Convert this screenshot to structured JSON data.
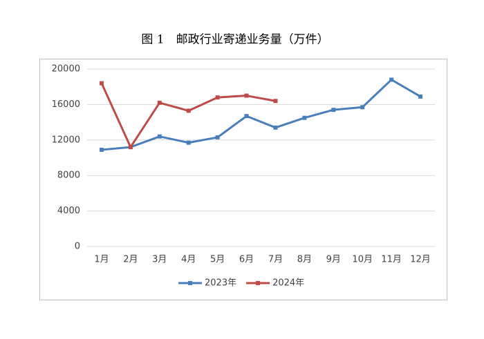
{
  "chart_data": {
    "type": "line",
    "title": "图 1　邮政行业寄递业务量（万件）",
    "categories": [
      "1月",
      "2月",
      "3月",
      "4月",
      "5月",
      "6月",
      "7月",
      "8月",
      "9月",
      "10月",
      "11月",
      "12月"
    ],
    "series": [
      {
        "name": "2023年",
        "color": "#4a7ebb",
        "values": [
          10900,
          11200,
          12400,
          11700,
          12300,
          14700,
          13400,
          14500,
          15400,
          15700,
          18800,
          16900
        ]
      },
      {
        "name": "2024年",
        "color": "#be4b48",
        "values": [
          18400,
          11200,
          16200,
          15300,
          16800,
          17000,
          16400,
          null,
          null,
          null,
          null,
          null
        ]
      }
    ],
    "ylim": [
      0,
      20000
    ],
    "yticks": [
      0,
      4000,
      8000,
      12000,
      16000,
      20000
    ],
    "grid": true,
    "legend": "bottom"
  }
}
